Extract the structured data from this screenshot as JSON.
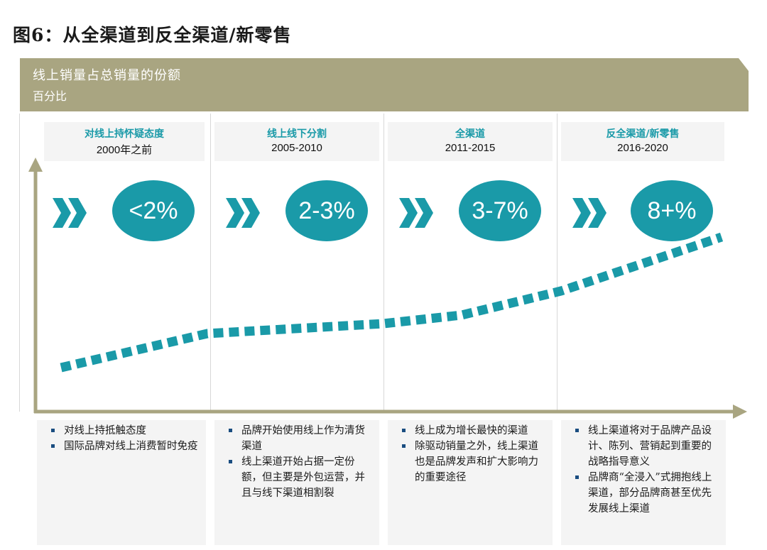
{
  "figure_title": "图6：从全渠道到反全渠道/新零售",
  "banner": {
    "title": "线上销量占总销量的份额",
    "subtitle": "百分比"
  },
  "colors": {
    "banner": "#a9a581",
    "accent": "#1a9aa8",
    "axis": "#a9a581",
    "bullet_marker": "#1a4d80"
  },
  "phases": [
    {
      "name": "对线上持怀疑态度",
      "years": "2000年之前",
      "share": "<2%",
      "bullets": [
        "对线上持抵触态度",
        "国际品牌对线上消费暂时免疫"
      ]
    },
    {
      "name": "线上线下分割",
      "years": "2005-2010",
      "share": "2-3%",
      "bullets": [
        "品牌开始使用线上作为清货渠道",
        "线上渠道开始占据一定份额，但主要是外包运营，并且与线下渠道相割裂"
      ]
    },
    {
      "name": "全渠道",
      "years": "2011-2015",
      "share": "3-7%",
      "bullets": [
        "线上成为增长最快的渠道",
        "除驱动销量之外，线上渠道也是品牌发声和扩大影响力的重要途径"
      ]
    },
    {
      "name": "反全渠道/新零售",
      "years": "2016-2020",
      "share": "8+%",
      "bullets": [
        "线上渠道将对于品牌产品设计、陈列、营销起到重要的战略指导意义",
        "品牌商“全浸入”式拥抱线上渠道，部分品牌商甚至优先发展线上渠道"
      ]
    }
  ],
  "icons": {
    "phase_marker": "double-chevron-right-icon"
  }
}
